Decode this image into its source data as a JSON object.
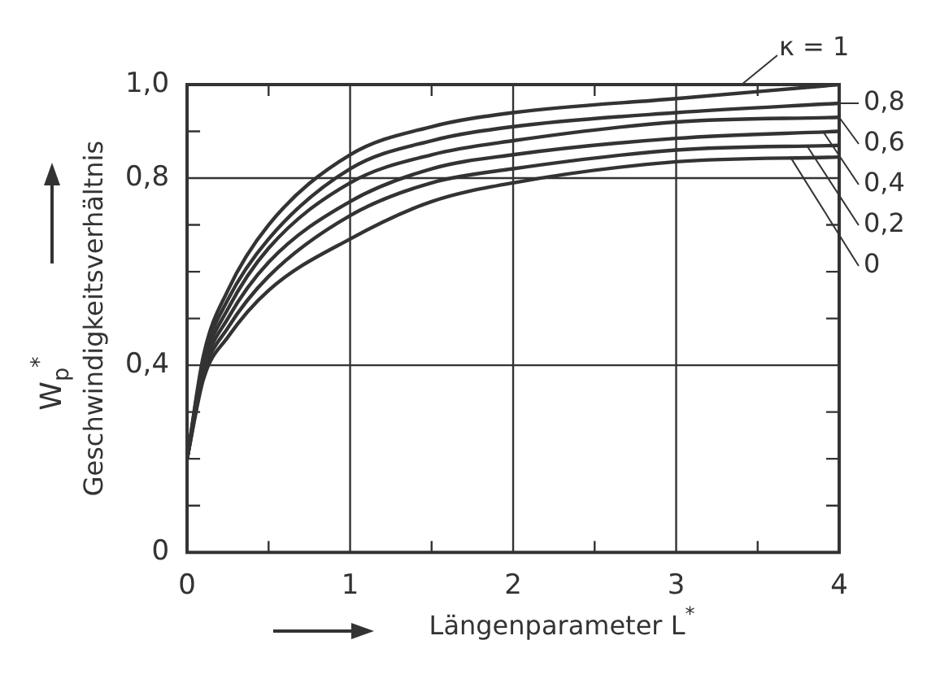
{
  "chart_data": {
    "type": "line",
    "xlabel": "Längenparameter L$^{*}$",
    "ylabel": "Geschwindigkeitsverhältnis W$_{p}$$^{*}$",
    "xlim": [
      0,
      4
    ],
    "ylim": [
      0,
      1.0
    ],
    "xticks": [
      0,
      {
        "value": 0.5,
        "label": null
      },
      1,
      {
        "value": 1.5,
        "label": null
      },
      2,
      {
        "value": 2.5,
        "label": null
      },
      3,
      {
        "value": 3.5,
        "label": null
      },
      4
    ],
    "yticks": [
      0,
      {
        "value": 0.1,
        "label": null
      },
      {
        "value": 0.2,
        "label": null
      },
      {
        "value": 0.3,
        "label": null
      },
      {
        "value": 0.4,
        "label": "0,4"
      },
      {
        "value": 0.5,
        "label": null
      },
      {
        "value": 0.6,
        "label": null
      },
      {
        "value": 0.7,
        "label": null
      },
      {
        "value": 0.8,
        "label": "0,8"
      },
      {
        "value": 0.9,
        "label": null
      },
      {
        "value": 1.0,
        "label": "1,0"
      }
    ],
    "grid": true,
    "marker": "none",
    "line_style": "solid",
    "legend": "right",
    "x": [
      0,
      0.1,
      0.25,
      0.5,
      1,
      1.5,
      2,
      3,
      4
    ],
    "series": [
      {
        "name": "κ = 1",
        "color": "#333333",
        "values": [
          0.2,
          0.42,
          0.56,
          0.7,
          0.85,
          0.91,
          0.94,
          0.97,
          1.0
        ]
      },
      {
        "name": "0,8",
        "color": "#333333",
        "values": [
          0.2,
          0.41,
          0.54,
          0.67,
          0.82,
          0.88,
          0.91,
          0.94,
          0.96
        ]
      },
      {
        "name": "0,6",
        "color": "#333333",
        "values": [
          0.2,
          0.4,
          0.52,
          0.65,
          0.79,
          0.85,
          0.88,
          0.92,
          0.93
        ]
      },
      {
        "name": "0,4",
        "color": "#333333",
        "values": [
          0.2,
          0.39,
          0.5,
          0.62,
          0.75,
          0.82,
          0.85,
          0.885,
          0.9
        ]
      },
      {
        "name": "0,2",
        "color": "#333333",
        "values": [
          0.2,
          0.38,
          0.48,
          0.59,
          0.72,
          0.79,
          0.82,
          0.86,
          0.87
        ]
      },
      {
        "name": "0",
        "color": "#333333",
        "values": [
          0.2,
          0.37,
          0.46,
          0.56,
          0.67,
          0.75,
          0.79,
          0.835,
          0.845
        ]
      }
    ]
  }
}
